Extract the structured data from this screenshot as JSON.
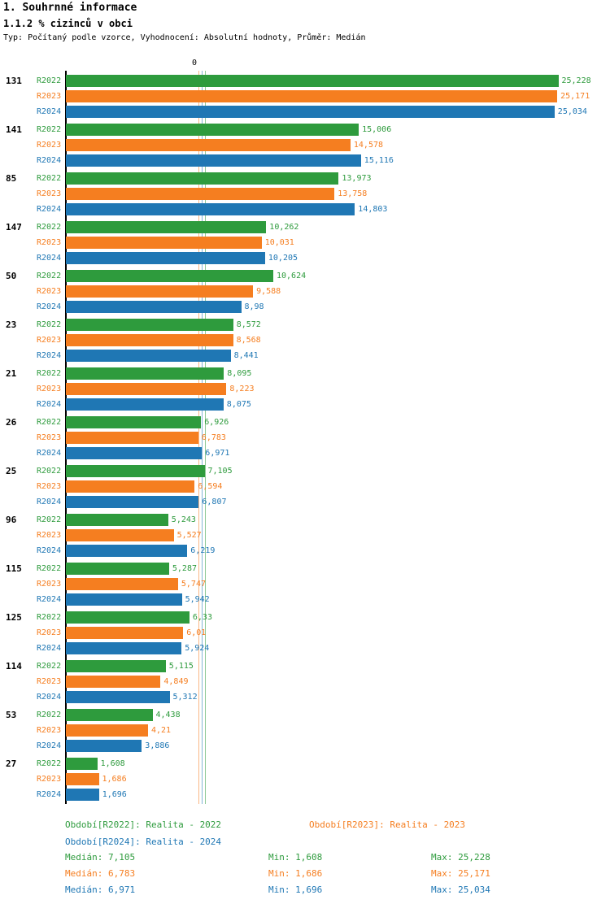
{
  "header": {
    "title1": "1. Souhrnné informace",
    "title2": "1.1.2 % cizinců v obci",
    "subtitle": "Typ: Počítaný podle vzorce, Vyhodnocení: Absolutní hodnoty, Průměr: Medián"
  },
  "colors": {
    "R2022": "#2e9b3d",
    "R2023": "#f57e20",
    "R2024": "#1f77b4",
    "axis": "#000000"
  },
  "chart_data": {
    "type": "bar",
    "orientation": "horizontal",
    "axis_zero_label": "0",
    "value_unit": "%",
    "series": [
      "R2022",
      "R2023",
      "R2024"
    ],
    "groups": [
      {
        "label": "131",
        "bars": [
          {
            "series": "R2022",
            "value": 25.228,
            "display": "25,228"
          },
          {
            "series": "R2023",
            "value": 25.171,
            "display": "25,171"
          },
          {
            "series": "R2024",
            "value": 25.034,
            "display": "25,034"
          }
        ]
      },
      {
        "label": "141",
        "bars": [
          {
            "series": "R2022",
            "value": 15.006,
            "display": "15,006"
          },
          {
            "series": "R2023",
            "value": 14.578,
            "display": "14,578"
          },
          {
            "series": "R2024",
            "value": 15.116,
            "display": "15,116"
          }
        ]
      },
      {
        "label": "85",
        "bars": [
          {
            "series": "R2022",
            "value": 13.973,
            "display": "13,973"
          },
          {
            "series": "R2023",
            "value": 13.758,
            "display": "13,758"
          },
          {
            "series": "R2024",
            "value": 14.803,
            "display": "14,803"
          }
        ]
      },
      {
        "label": "147",
        "bars": [
          {
            "series": "R2022",
            "value": 10.262,
            "display": "10,262"
          },
          {
            "series": "R2023",
            "value": 10.031,
            "display": "10,031"
          },
          {
            "series": "R2024",
            "value": 10.205,
            "display": "10,205"
          }
        ]
      },
      {
        "label": "50",
        "bars": [
          {
            "series": "R2022",
            "value": 10.624,
            "display": "10,624"
          },
          {
            "series": "R2023",
            "value": 9.588,
            "display": "9,588"
          },
          {
            "series": "R2024",
            "value": 8.98,
            "display": "8,98"
          }
        ]
      },
      {
        "label": "23",
        "bars": [
          {
            "series": "R2022",
            "value": 8.572,
            "display": "8,572"
          },
          {
            "series": "R2023",
            "value": 8.568,
            "display": "8,568"
          },
          {
            "series": "R2024",
            "value": 8.441,
            "display": "8,441"
          }
        ]
      },
      {
        "label": "21",
        "bars": [
          {
            "series": "R2022",
            "value": 8.095,
            "display": "8,095"
          },
          {
            "series": "R2023",
            "value": 8.223,
            "display": "8,223"
          },
          {
            "series": "R2024",
            "value": 8.075,
            "display": "8,075"
          }
        ]
      },
      {
        "label": "26",
        "bars": [
          {
            "series": "R2022",
            "value": 6.926,
            "display": "6,926"
          },
          {
            "series": "R2023",
            "value": 6.783,
            "display": "6,783"
          },
          {
            "series": "R2024",
            "value": 6.971,
            "display": "6,971"
          }
        ]
      },
      {
        "label": "25",
        "bars": [
          {
            "series": "R2022",
            "value": 7.105,
            "display": "7,105"
          },
          {
            "series": "R2023",
            "value": 6.594,
            "display": "6,594"
          },
          {
            "series": "R2024",
            "value": 6.807,
            "display": "6,807"
          }
        ]
      },
      {
        "label": "96",
        "bars": [
          {
            "series": "R2022",
            "value": 5.243,
            "display": "5,243"
          },
          {
            "series": "R2023",
            "value": 5.527,
            "display": "5,527"
          },
          {
            "series": "R2024",
            "value": 6.219,
            "display": "6,219"
          }
        ]
      },
      {
        "label": "115",
        "bars": [
          {
            "series": "R2022",
            "value": 5.287,
            "display": "5,287"
          },
          {
            "series": "R2023",
            "value": 5.747,
            "display": "5,747"
          },
          {
            "series": "R2024",
            "value": 5.942,
            "display": "5,942"
          }
        ]
      },
      {
        "label": "125",
        "bars": [
          {
            "series": "R2022",
            "value": 6.33,
            "display": "6,33"
          },
          {
            "series": "R2023",
            "value": 6.01,
            "display": "6,01"
          },
          {
            "series": "R2024",
            "value": 5.924,
            "display": "5,924"
          }
        ]
      },
      {
        "label": "114",
        "bars": [
          {
            "series": "R2022",
            "value": 5.115,
            "display": "5,115"
          },
          {
            "series": "R2023",
            "value": 4.849,
            "display": "4,849"
          },
          {
            "series": "R2024",
            "value": 5.312,
            "display": "5,312"
          }
        ]
      },
      {
        "label": "53",
        "bars": [
          {
            "series": "R2022",
            "value": 4.438,
            "display": "4,438"
          },
          {
            "series": "R2023",
            "value": 4.21,
            "display": "4,21"
          },
          {
            "series": "R2024",
            "value": 3.886,
            "display": "3,886"
          }
        ]
      },
      {
        "label": "27",
        "bars": [
          {
            "series": "R2022",
            "value": 1.608,
            "display": "1,608"
          },
          {
            "series": "R2023",
            "value": 1.686,
            "display": "1,686"
          },
          {
            "series": "R2024",
            "value": 1.696,
            "display": "1,696"
          }
        ]
      }
    ],
    "medians": [
      {
        "series": "R2022",
        "value": 7.105
      },
      {
        "series": "R2023",
        "value": 6.783
      },
      {
        "series": "R2024",
        "value": 6.971
      }
    ]
  },
  "legend": {
    "items": [
      {
        "series": "R2022",
        "label": "Období[R2022]: Realita - 2022"
      },
      {
        "series": "R2023",
        "label": "Období[R2023]: Realita - 2023"
      },
      {
        "series": "R2024",
        "label": "Období[R2024]: Realita - 2024"
      }
    ]
  },
  "stats": {
    "rows": [
      {
        "series": "R2022",
        "median": "Medián: 7,105",
        "min": "Min: 1,608",
        "max": "Max: 25,228"
      },
      {
        "series": "R2023",
        "median": "Medián: 6,783",
        "min": "Min: 1,686",
        "max": "Max: 25,171"
      },
      {
        "series": "R2024",
        "median": "Medián: 6,971",
        "min": "Min: 1,696",
        "max": "Max: 25,034"
      }
    ]
  }
}
